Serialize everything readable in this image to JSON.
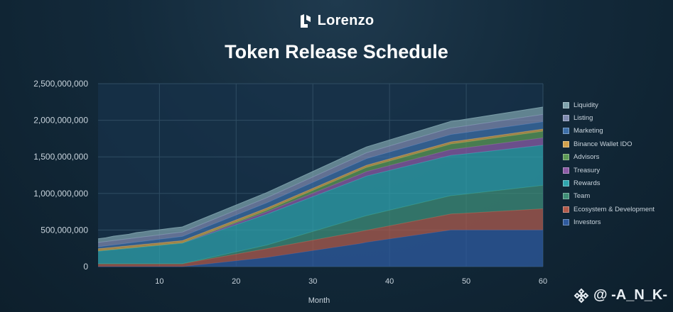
{
  "brand": {
    "name": "Lorenzo"
  },
  "chart_data": {
    "type": "area",
    "stacked": true,
    "title": "Token Release Schedule",
    "xlabel": "Month",
    "ylabel": "",
    "xlim": [
      2,
      60
    ],
    "ylim": [
      0,
      2500000000
    ],
    "xticks": [
      10,
      20,
      30,
      40,
      50,
      60
    ],
    "yticks": [
      0,
      500000000,
      1000000000,
      1500000000,
      2000000000,
      2500000000
    ],
    "ytick_labels": [
      "0",
      "500,000,000",
      "1,000,000,000",
      "1,500,000,000",
      "2,000,000,000",
      "2,500,000,000"
    ],
    "grid": true,
    "x": [
      2,
      3,
      4,
      5,
      6,
      7,
      8,
      9,
      10,
      11,
      12,
      13,
      24,
      36,
      37,
      48,
      49,
      60
    ],
    "series": [
      {
        "name": "Investors",
        "color": "#2e5a9e",
        "values": [
          0,
          0,
          0,
          0,
          0,
          0,
          0,
          0,
          0,
          0,
          0,
          0,
          125000000,
          312000000,
          333000000,
          500000000,
          500000000,
          500000000
        ]
      },
      {
        "name": "Ecosystem & Development",
        "color": "#b25a4a",
        "values": [
          40000000,
          40000000,
          40000000,
          40000000,
          40000000,
          40000000,
          40000000,
          40000000,
          40000000,
          40000000,
          40000000,
          40000000,
          120000000,
          164000000,
          164000000,
          220000000,
          225000000,
          290000000
        ]
      },
      {
        "name": "Team",
        "color": "#3f8e76",
        "values": [
          0,
          0,
          0,
          0,
          0,
          0,
          0,
          0,
          0,
          0,
          0,
          0,
          50000000,
          190000000,
          200000000,
          250000000,
          255000000,
          320000000
        ]
      },
      {
        "name": "Rewards",
        "color": "#2fa5ae",
        "values": [
          170000000,
          180000000,
          190000000,
          200000000,
          210000000,
          220000000,
          230000000,
          240000000,
          250000000,
          260000000,
          270000000,
          280000000,
          420000000,
          530000000,
          540000000,
          550000000,
          550000000,
          550000000
        ]
      },
      {
        "name": "Treasury",
        "color": "#8d5ba6",
        "values": [
          5000000,
          5000000,
          5000000,
          5000000,
          5000000,
          5000000,
          5000000,
          5000000,
          5000000,
          5000000,
          5000000,
          5000000,
          35000000,
          60000000,
          62000000,
          80000000,
          82000000,
          100000000
        ]
      },
      {
        "name": "Advisors",
        "color": "#5d9a55",
        "values": [
          0,
          0,
          0,
          0,
          0,
          0,
          0,
          0,
          0,
          0,
          0,
          0,
          20000000,
          55000000,
          57000000,
          75000000,
          77000000,
          90000000
        ]
      },
      {
        "name": "Binance Wallet IDO",
        "color": "#d3a24c",
        "values": [
          30000000,
          30000000,
          30000000,
          30000000,
          30000000,
          30000000,
          30000000,
          30000000,
          30000000,
          30000000,
          30000000,
          30000000,
          30000000,
          30000000,
          30000000,
          30000000,
          30000000,
          30000000
        ]
      },
      {
        "name": "Marketing",
        "color": "#3d6fa8",
        "values": [
          25000000,
          28000000,
          31000000,
          34000000,
          37000000,
          40000000,
          43000000,
          46000000,
          49000000,
          52000000,
          55000000,
          58000000,
          72000000,
          88000000,
          90000000,
          100000000,
          100000000,
          100000000
        ]
      },
      {
        "name": "Listing",
        "color": "#7f8bb0",
        "values": [
          60000000,
          60000000,
          60000000,
          60000000,
          60000000,
          60000000,
          60000000,
          60000000,
          60000000,
          60000000,
          60000000,
          60000000,
          70000000,
          80000000,
          80000000,
          90000000,
          90000000,
          100000000
        ]
      },
      {
        "name": "Liquidity",
        "color": "#7fa3ad",
        "values": [
          50000000,
          50000000,
          60000000,
          60000000,
          60000000,
          70000000,
          70000000,
          70000000,
          70000000,
          70000000,
          70000000,
          70000000,
          70000000,
          80000000,
          80000000,
          90000000,
          90000000,
          100000000
        ]
      }
    ]
  },
  "watermark": {
    "text": "@ -A_N_K-"
  }
}
